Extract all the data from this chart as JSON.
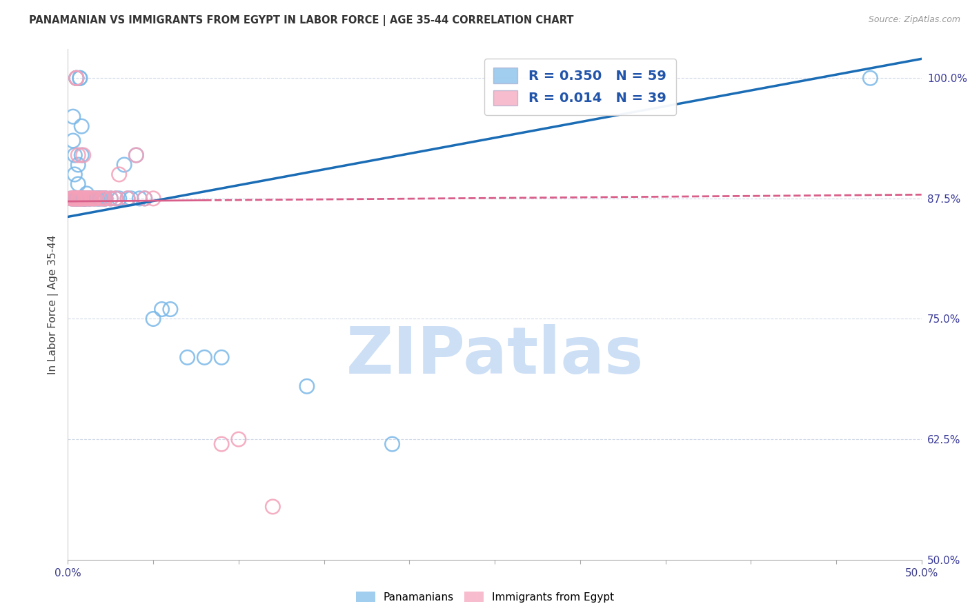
{
  "title": "PANAMANIAN VS IMMIGRANTS FROM EGYPT IN LABOR FORCE | AGE 35-44 CORRELATION CHART",
  "source": "Source: ZipAtlas.com",
  "ylabel": "In Labor Force | Age 35-44",
  "xlim": [
    0.0,
    0.5
  ],
  "ylim": [
    0.5,
    1.03
  ],
  "xticks": [
    0.0,
    0.05,
    0.1,
    0.15,
    0.2,
    0.25,
    0.3,
    0.35,
    0.4,
    0.45,
    0.5
  ],
  "yticks_right": [
    0.5,
    0.625,
    0.75,
    0.875,
    1.0
  ],
  "ytick_right_labels": [
    "50.0%",
    "62.5%",
    "75.0%",
    "87.5%",
    "100.0%"
  ],
  "blue_R": 0.35,
  "blue_N": 59,
  "pink_R": 0.014,
  "pink_N": 39,
  "blue_color": "#7ab8e8",
  "pink_color": "#f4a0b8",
  "blue_trend_color": "#1a6cb5",
  "pink_trend_color": "#d95f8a",
  "watermark_text": "ZIPatlas",
  "watermark_color": "#ccdff5",
  "blue_scatter_x": [
    0.002,
    0.003,
    0.003,
    0.003,
    0.004,
    0.004,
    0.004,
    0.005,
    0.005,
    0.005,
    0.005,
    0.005,
    0.006,
    0.006,
    0.006,
    0.007,
    0.007,
    0.007,
    0.008,
    0.008,
    0.008,
    0.009,
    0.009,
    0.01,
    0.01,
    0.01,
    0.011,
    0.011,
    0.012,
    0.013,
    0.013,
    0.015,
    0.016,
    0.017,
    0.018,
    0.018,
    0.019,
    0.02,
    0.021,
    0.022,
    0.022,
    0.025,
    0.028,
    0.03,
    0.033,
    0.035,
    0.037,
    0.04,
    0.042,
    0.045,
    0.05,
    0.055,
    0.06,
    0.07,
    0.08,
    0.09,
    0.14,
    0.19,
    0.47
  ],
  "blue_scatter_y": [
    0.875,
    0.935,
    0.96,
    0.875,
    0.92,
    0.9,
    0.875,
    1.0,
    1.0,
    1.0,
    0.875,
    0.875,
    0.89,
    0.91,
    0.875,
    1.0,
    1.0,
    0.875,
    0.95,
    0.92,
    0.875,
    0.875,
    0.875,
    0.875,
    0.875,
    0.875,
    0.88,
    0.875,
    0.875,
    0.875,
    0.875,
    0.875,
    0.875,
    0.875,
    0.875,
    0.875,
    0.875,
    0.875,
    0.875,
    0.875,
    0.875,
    0.875,
    0.875,
    0.875,
    0.91,
    0.875,
    0.875,
    0.92,
    0.875,
    0.875,
    0.75,
    0.76,
    0.76,
    0.71,
    0.71,
    0.71,
    0.68,
    0.62,
    1.0
  ],
  "pink_scatter_x": [
    0.002,
    0.003,
    0.003,
    0.004,
    0.004,
    0.005,
    0.005,
    0.005,
    0.006,
    0.006,
    0.006,
    0.007,
    0.007,
    0.008,
    0.008,
    0.009,
    0.009,
    0.01,
    0.01,
    0.011,
    0.012,
    0.013,
    0.014,
    0.015,
    0.016,
    0.018,
    0.02,
    0.021,
    0.022,
    0.025,
    0.028,
    0.03,
    0.035,
    0.04,
    0.045,
    0.05,
    0.09,
    0.1,
    0.12
  ],
  "pink_scatter_y": [
    0.875,
    0.875,
    0.875,
    0.875,
    0.875,
    1.0,
    1.0,
    0.875,
    0.875,
    0.875,
    0.92,
    0.875,
    0.875,
    0.875,
    0.875,
    0.92,
    0.875,
    0.875,
    0.875,
    0.875,
    0.875,
    0.875,
    0.875,
    0.875,
    0.875,
    0.875,
    0.875,
    0.875,
    0.875,
    0.875,
    0.875,
    0.9,
    0.875,
    0.92,
    0.875,
    0.875,
    0.62,
    0.625,
    0.555
  ],
  "blue_trend_x0": 0.0,
  "blue_trend_y0": 0.856,
  "blue_trend_x1": 0.5,
  "blue_trend_y1": 1.02,
  "pink_trend_x0": 0.0,
  "pink_trend_y0": 0.872,
  "pink_trend_x1": 0.5,
  "pink_trend_y1": 0.879
}
